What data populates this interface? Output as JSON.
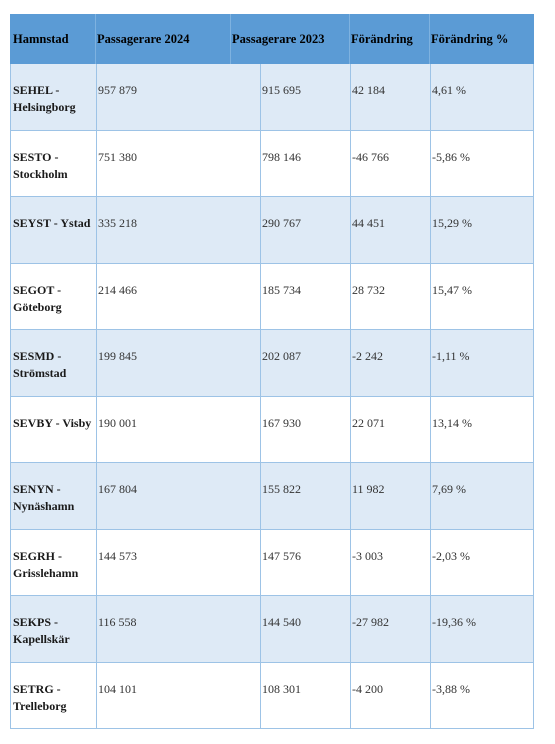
{
  "table": {
    "headers": [
      "Hamnstad",
      "Passagerare 2024",
      "Passagerare 2023",
      "Förändring",
      "Förändring %"
    ],
    "rows": [
      {
        "port": "SEHEL - Helsingborg",
        "p2024": "957 879",
        "p2023": "915 695",
        "change": "42 184",
        "pct": "4,61 %"
      },
      {
        "port": "SESTO - Stockholm",
        "p2024": "751 380",
        "p2023": "798 146",
        "change": "-46 766",
        "pct": "-5,86 %"
      },
      {
        "port": "SEYST - Ystad",
        "p2024": "335 218",
        "p2023": "290 767",
        "change": "44 451",
        "pct": "15,29 %"
      },
      {
        "port": "SEGOT - Göteborg",
        "p2024": "214 466",
        "p2023": "185 734",
        "change": "28 732",
        "pct": "15,47 %"
      },
      {
        "port": "SESMD - Strömstad",
        "p2024": "199 845",
        "p2023": "202 087",
        "change": "-2 242",
        "pct": "-1,11 %"
      },
      {
        "port": "SEVBY - Visby",
        "p2024": "190 001",
        "p2023": "167 930",
        "change": "22 071",
        "pct": "13,14 %"
      },
      {
        "port": "SENYN - Nynäshamn",
        "p2024": "167 804",
        "p2023": "155 822",
        "change": "11 982",
        "pct": "7,69 %"
      },
      {
        "port": "SEGRH - Grisslehamn",
        "p2024": "144 573",
        "p2023": "147 576",
        "change": "-3 003",
        "pct": "-2,03 %"
      },
      {
        "port": "SEKPS - Kapellskär",
        "p2024": "116 558",
        "p2023": "144 540",
        "change": "-27 982",
        "pct": "-19,36 %"
      },
      {
        "port": "SETRG - Trelleborg",
        "p2024": "104 101",
        "p2023": "108 301",
        "change": "-4 200",
        "pct": "-3,88 %"
      }
    ]
  },
  "colors": {
    "header_bg": "#5b9bd5",
    "row_alt_bg": "#deeaf6",
    "border": "#9dc3e6"
  }
}
